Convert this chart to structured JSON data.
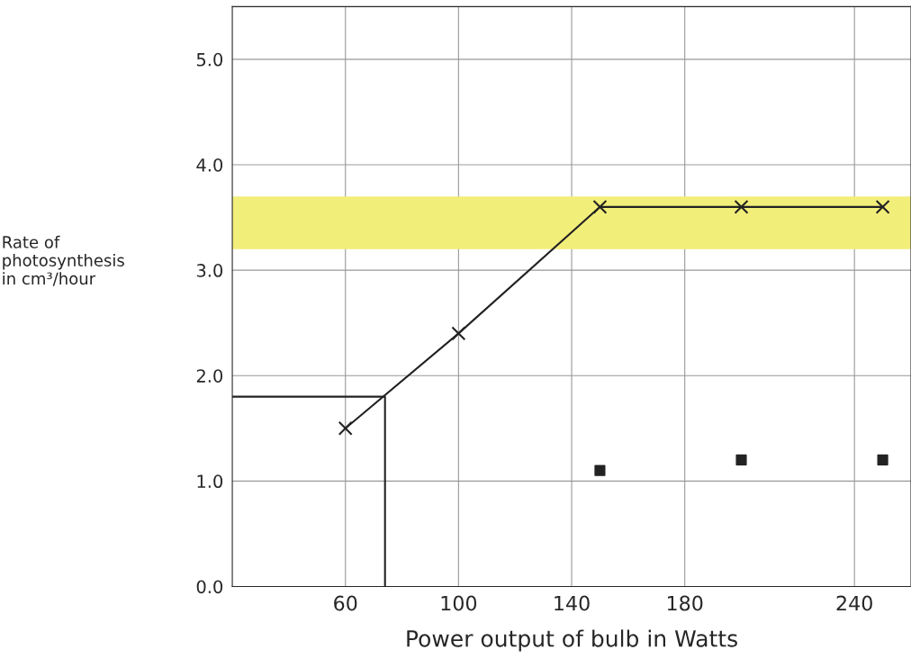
{
  "chart_data": {
    "type": "line",
    "xlabel": "Power output of bulb in Watts",
    "ylabel": "Rate of\nphotosynthesis\nin cm³/hour",
    "x": [
      60,
      100,
      150,
      200,
      250
    ],
    "series": [
      {
        "color": "#222222",
        "values": [
          1.5,
          2.4,
          3.6,
          3.6,
          3.6
        ],
        "marker": "cross"
      },
      {
        "type": "scatter",
        "color": "#222222",
        "values": [
          1.1,
          1.2,
          1.2
        ],
        "x": [
          150,
          200,
          250
        ],
        "marker": "square"
      },
      {
        "type": "line",
        "color": "#222222",
        "values": [
          1.8,
          1.8,
          0
        ],
        "x": [
          20,
          74,
          74
        ],
        "marker": "none"
      }
    ],
    "bands": [
      {
        "axis": "y",
        "from": 3.2,
        "to": 3.7,
        "color": "#f2ee7a"
      }
    ],
    "xlim": [
      20,
      260
    ],
    "ylim": [
      0,
      5.5
    ],
    "xticks": [
      60,
      100,
      140,
      180,
      240
    ],
    "yticks": [
      {
        "value": 0,
        "label": "0.0"
      },
      {
        "value": 1,
        "label": "1.0"
      },
      {
        "value": 2,
        "label": "2.0"
      },
      {
        "value": 3,
        "label": "3.0"
      },
      {
        "value": 4,
        "label": "4.0"
      },
      {
        "value": 5,
        "label": "5.0"
      }
    ],
    "grid": true
  }
}
